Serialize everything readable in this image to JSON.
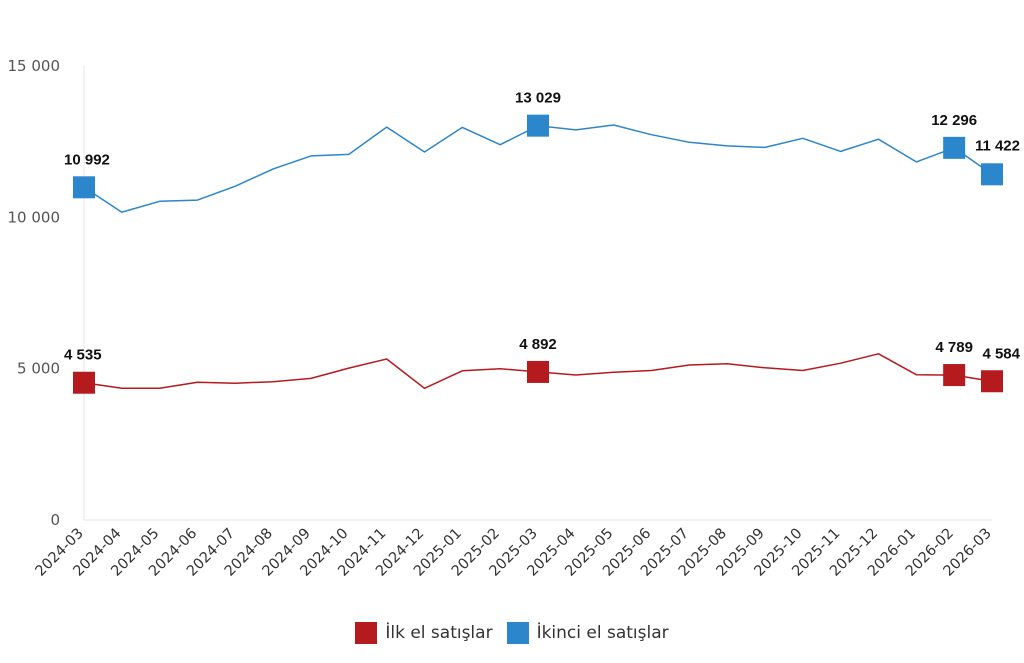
{
  "chart_data": {
    "type": "line",
    "title": "",
    "xlabel": "",
    "ylabel": "",
    "ylim": [
      0,
      15000
    ],
    "yticks": [
      {
        "value": 0,
        "label": "0"
      },
      {
        "value": 5000,
        "label": "5 000"
      },
      {
        "value": 10000,
        "label": "10 000"
      },
      {
        "value": 15000,
        "label": "15 000"
      }
    ],
    "grid": false,
    "legend_position": "bottom",
    "categories": [
      "2024-03",
      "2024-04",
      "2024-05",
      "2024-06",
      "2024-07",
      "2024-08",
      "2024-09",
      "2024-10",
      "2024-11",
      "2024-12",
      "2025-01",
      "2025-02",
      "2025-03",
      "2025-04",
      "2025-05",
      "2025-06",
      "2025-07",
      "2025-08",
      "2025-09",
      "2025-10",
      "2025-11",
      "2025-12",
      "2026-01",
      "2026-02",
      "2026-03"
    ],
    "series": [
      {
        "name": "İlk el satışlar",
        "color": "#B51A1F",
        "values": [
          4535,
          4350,
          4350,
          4550,
          4520,
          4570,
          4680,
          5020,
          5320,
          4350,
          4930,
          5000,
          4892,
          4790,
          4880,
          4940,
          5120,
          5160,
          5030,
          4940,
          5180,
          5490,
          4800,
          4789,
          4584
        ],
        "highlight_indices": [
          0,
          12,
          23,
          24
        ],
        "labels": [
          "4 535",
          "4 892",
          "4 789",
          "4 584"
        ]
      },
      {
        "name": "İkinci el satışlar",
        "color": "#2C86CC",
        "values": [
          10992,
          10170,
          10530,
          10570,
          11030,
          11600,
          12030,
          12080,
          12980,
          12160,
          12970,
          12400,
          13029,
          12890,
          13050,
          12730,
          12480,
          12360,
          12310,
          12610,
          12180,
          12580,
          11830,
          12296,
          11422
        ],
        "highlight_indices": [
          0,
          12,
          23,
          24
        ],
        "labels": [
          "10 992",
          "13 029",
          "12 296",
          "11 422"
        ]
      }
    ]
  }
}
